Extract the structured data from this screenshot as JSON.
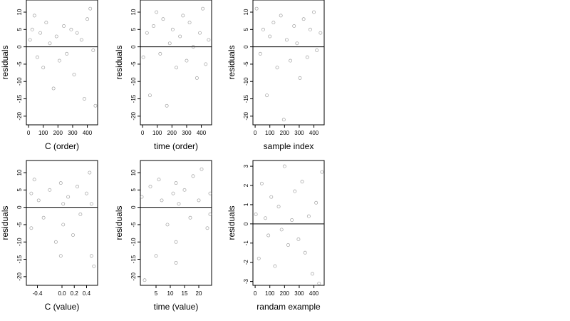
{
  "chart_data": [
    {
      "type": "scatter",
      "xlabel": "C (order)",
      "ylabel": "residuals",
      "xlim": [
        -15,
        470
      ],
      "ylim": [
        -22.5,
        13.5
      ],
      "xticks": [
        0,
        100,
        200,
        300,
        400
      ],
      "yticks": [
        -20,
        -15,
        -10,
        -5,
        0,
        5,
        10
      ],
      "hline": 0,
      "series": [
        {
          "x": [
            10,
            25,
            40,
            60,
            80,
            100,
            120,
            145,
            170,
            190,
            210,
            240,
            260,
            290,
            310,
            330,
            360,
            380,
            400,
            420,
            440,
            455
          ],
          "y": [
            2,
            5,
            9,
            -3,
            4,
            -6,
            7,
            1,
            -12,
            3,
            -4,
            6,
            -2,
            5,
            -8,
            4,
            2,
            -15,
            8,
            11,
            -1,
            -17
          ]
        }
      ]
    },
    {
      "type": "scatter",
      "xlabel": "time (order)",
      "ylabel": "residuals",
      "xlim": [
        -15,
        470
      ],
      "ylim": [
        -22.5,
        13.5
      ],
      "xticks": [
        0,
        100,
        200,
        300,
        400
      ],
      "yticks": [
        -20,
        -15,
        -10,
        -5,
        0,
        5,
        10
      ],
      "hline": 0,
      "series": [
        {
          "x": [
            5,
            30,
            50,
            75,
            95,
            120,
            140,
            165,
            185,
            205,
            230,
            255,
            275,
            300,
            320,
            345,
            370,
            390,
            410,
            430,
            450
          ],
          "y": [
            -3,
            4,
            -14,
            6,
            10,
            -2,
            8,
            -17,
            1,
            5,
            -6,
            3,
            9,
            -4,
            7,
            0,
            -9,
            4,
            11,
            -5,
            2
          ]
        }
      ]
    },
    {
      "type": "scatter",
      "xlabel": "sample index",
      "ylabel": "residuals",
      "xlim": [
        -15,
        470
      ],
      "ylim": [
        -22.5,
        13.5
      ],
      "xticks": [
        0,
        100,
        200,
        300,
        400
      ],
      "yticks": [
        -20,
        -15,
        -10,
        -5,
        0,
        5,
        10
      ],
      "hline": 0,
      "series": [
        {
          "x": [
            10,
            35,
            55,
            80,
            100,
            125,
            150,
            175,
            195,
            215,
            240,
            265,
            285,
            305,
            330,
            355,
            375,
            400,
            420,
            445
          ],
          "y": [
            11,
            -2,
            5,
            -14,
            3,
            7,
            -6,
            9,
            -21,
            2,
            -4,
            6,
            1,
            -9,
            8,
            -3,
            5,
            10,
            -1,
            4
          ]
        }
      ]
    },
    {
      "type": "scatter",
      "xlabel": "C (value)",
      "ylabel": "residuals",
      "xlim": [
        -0.58,
        0.58
      ],
      "ylim": [
        -22.5,
        13.5
      ],
      "xticks": [
        -0.4,
        0.0,
        0.2,
        0.4
      ],
      "xticklabels": [
        "-0.4",
        "0.0",
        "0.2",
        "0.4"
      ],
      "yticks": [
        -20,
        -15,
        -10,
        -5,
        0,
        5,
        10
      ],
      "hline": 0,
      "series": [
        {
          "x": [
            -0.5,
            -0.5,
            -0.45,
            -0.38,
            -0.3,
            -0.2,
            -0.1,
            -0.02,
            -0.02,
            0.02,
            0.02,
            0.1,
            0.18,
            0.25,
            0.3,
            0.4,
            0.45,
            0.48,
            0.48,
            0.52
          ],
          "y": [
            4,
            -6,
            8,
            2,
            -3,
            5,
            -10,
            7,
            -14,
            1,
            -5,
            3,
            -8,
            6,
            -2,
            4,
            10,
            -14,
            1,
            -17
          ]
        }
      ]
    },
    {
      "type": "scatter",
      "xlabel": "time (value)",
      "ylabel": "residuals",
      "xlim": [
        -0.5,
        24.5
      ],
      "ylim": [
        -22.5,
        13.5
      ],
      "xticks": [
        5,
        10,
        15,
        20
      ],
      "yticks": [
        -20,
        -15,
        -10,
        -5,
        0,
        5,
        10
      ],
      "hline": 0,
      "series": [
        {
          "x": [
            0,
            1,
            3,
            5,
            6,
            7,
            9,
            11,
            12,
            12,
            12,
            13,
            15,
            17,
            18,
            20,
            21,
            23,
            24,
            24
          ],
          "y": [
            3,
            -21,
            6,
            -14,
            8,
            2,
            -5,
            4,
            -10,
            7,
            -16,
            1,
            5,
            -3,
            9,
            2,
            11,
            -6,
            4,
            -2
          ]
        }
      ]
    },
    {
      "type": "scatter",
      "xlabel": "randam example",
      "ylabel": "residuals",
      "xlim": [
        -15,
        470
      ],
      "ylim": [
        -3.2,
        3.3
      ],
      "xticks": [
        0,
        100,
        200,
        300,
        400
      ],
      "yticks": [
        -3,
        -2,
        -1,
        0,
        1,
        2,
        3
      ],
      "hline": 0,
      "series": [
        {
          "x": [
            5,
            25,
            45,
            70,
            90,
            110,
            135,
            160,
            180,
            200,
            225,
            250,
            270,
            295,
            320,
            340,
            365,
            390,
            415,
            435,
            455
          ],
          "y": [
            0.5,
            -1.8,
            2.1,
            0.3,
            -0.6,
            1.4,
            -2.2,
            0.9,
            -0.3,
            3.0,
            -1.1,
            0.2,
            1.7,
            -0.8,
            2.2,
            -1.5,
            0.4,
            -2.6,
            1.1,
            -3.1,
            2.7
          ]
        }
      ]
    }
  ]
}
